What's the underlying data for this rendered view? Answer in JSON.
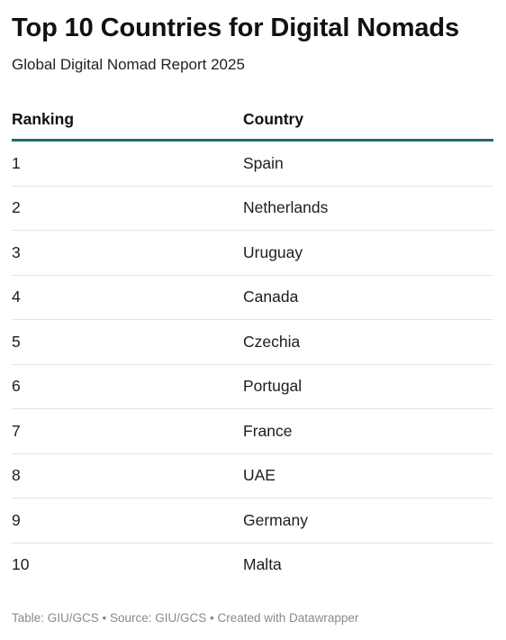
{
  "header": {
    "title": "Top 10 Countries for Digital Nomads",
    "subtitle": "Global Digital Nomad Report 2025"
  },
  "chart_data": {
    "type": "table",
    "columns": [
      "Ranking",
      "Country"
    ],
    "rows": [
      {
        "rank": "1",
        "country": "Spain"
      },
      {
        "rank": "2",
        "country": "Netherlands"
      },
      {
        "rank": "3",
        "country": "Uruguay"
      },
      {
        "rank": "4",
        "country": "Canada"
      },
      {
        "rank": "5",
        "country": "Czechia"
      },
      {
        "rank": "6",
        "country": "Portugal"
      },
      {
        "rank": "7",
        "country": "France"
      },
      {
        "rank": "8",
        "country": "UAE"
      },
      {
        "rank": "9",
        "country": "Germany"
      },
      {
        "rank": "10",
        "country": "Malta"
      }
    ]
  },
  "footer": {
    "credit": "Table: GIU/GCS • Source: GIU/GCS • Created with Datawrapper"
  },
  "colors": {
    "header_rule": "#1f6a7a",
    "row_divider": "#e3e3e3",
    "footer_text": "#8a8a8a"
  }
}
